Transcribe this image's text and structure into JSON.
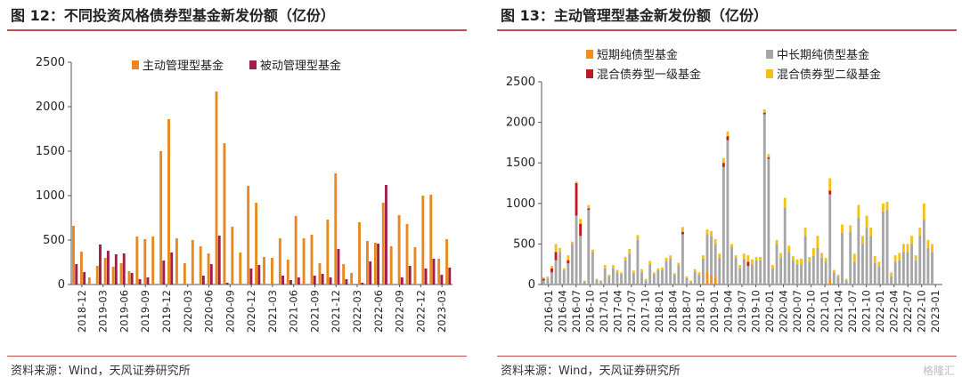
{
  "charts": [
    {
      "title": "图 12：不同投资风格债券型基金新发份额（亿份）",
      "source": "资料来源：Wind，天风证券研究所",
      "chart_data": {
        "type": "bar",
        "stacked": false,
        "ylim": [
          0,
          2500
        ],
        "yticks": [
          0,
          500,
          1000,
          1500,
          2000,
          2500
        ],
        "x_labels": [
          "2018-12",
          "2019-03",
          "2019-06",
          "2019-09",
          "2019-12",
          "2020-03",
          "2020-06",
          "2020-09",
          "2020-12",
          "2021-03",
          "2021-06",
          "2021-09",
          "2021-12",
          "2022-03",
          "2022-06",
          "2022-09",
          "2022-12",
          "2023-03"
        ],
        "legend_position": "top",
        "grid": false,
        "series": [
          {
            "name": "主动管理型基金",
            "color": "#E8891E",
            "values": [
              660,
              370,
              80,
              210,
              300,
              200,
              240,
              150,
              540,
              510,
              540,
              1500,
              1860,
              520,
              240,
              500,
              430,
              350,
              2170,
              1590,
              650,
              360,
              1110,
              920,
              310,
              300,
              520,
              280,
              770,
              520,
              560,
              240,
              730,
              1250,
              230,
              130,
              700,
              490,
              470,
              920,
              430,
              780,
              680,
              420,
              1000,
              1010,
              290,
              510
            ]
          },
          {
            "name": "被动管理型基金",
            "color": "#A11E4B",
            "values": [
              230,
              140,
              0,
              450,
              380,
              340,
              350,
              130,
              60,
              80,
              0,
              270,
              360,
              0,
              0,
              0,
              100,
              230,
              550,
              20,
              0,
              0,
              180,
              220,
              0,
              0,
              100,
              50,
              80,
              0,
              100,
              120,
              80,
              400,
              60,
              0,
              20,
              260,
              460,
              1120,
              0,
              80,
              210,
              0,
              180,
              290,
              110,
              190
            ]
          }
        ]
      }
    },
    {
      "title": "图 13：主动管理型基金新发份额（亿份）",
      "source": "资料来源：Wind，天风证券研究所",
      "watermark": "格隆汇",
      "chart_data": {
        "type": "bar",
        "stacked": true,
        "ylim": [
          0,
          2500
        ],
        "yticks": [
          0,
          500,
          1000,
          1500,
          2000,
          2500
        ],
        "x_labels": [
          "2016-01",
          "2016-04",
          "2016-07",
          "2016-10",
          "2017-01",
          "2017-04",
          "2017-07",
          "2017-10",
          "2018-01",
          "2018-04",
          "2018-07",
          "2018-10",
          "2019-01",
          "2019-04",
          "2019-07",
          "2019-10",
          "2020-01",
          "2020-04",
          "2020-07",
          "2020-10",
          "2021-01",
          "2021-04",
          "2021-07",
          "2021-10",
          "2022-01",
          "2022-04",
          "2022-07",
          "2022-10",
          "2023-01"
        ],
        "legend_position": "top",
        "grid": false,
        "series": [
          {
            "name": "短期纯债型基金",
            "color": "#F0901A",
            "values": [
              0,
              0,
              0,
              0,
              0,
              0,
              0,
              0,
              0,
              0,
              0,
              0,
              0,
              0,
              0,
              0,
              0,
              0,
              0,
              0,
              0,
              0,
              0,
              0,
              0,
              0,
              0,
              0,
              0,
              0,
              0,
              0,
              0,
              0,
              0,
              0,
              0,
              0,
              0,
              20,
              160,
              120,
              100,
              0,
              0,
              0,
              0,
              0,
              0,
              0,
              0,
              0,
              0,
              0,
              0,
              0,
              0,
              0,
              0,
              0,
              0,
              0,
              0,
              0,
              0,
              0,
              0,
              0,
              0,
              0,
              60,
              0,
              0,
              0,
              0,
              0,
              0,
              0,
              0,
              0,
              0,
              0,
              0,
              0,
              0,
              0,
              0,
              0,
              0,
              0,
              0,
              0,
              0,
              0,
              0,
              0,
              0,
              0
            ]
          },
          {
            "name": "中长期纯债型基金",
            "color": "#A6A6A6",
            "values": [
              50,
              80,
              150,
              300,
              400,
              180,
              260,
              500,
              850,
              600,
              40,
              920,
              400,
              60,
              40,
              200,
              100,
              200,
              150,
              130,
              300,
              380,
              140,
              550,
              150,
              50,
              250,
              130,
              170,
              180,
              290,
              320,
              120,
              240,
              620,
              80,
              30,
              160,
              120,
              300,
              460,
              480,
              400,
              330,
              1450,
              1780,
              460,
              330,
              200,
              320,
              230,
              250,
              300,
              300,
              2100,
              1550,
              200,
              500,
              330,
              950,
              400,
              300,
              250,
              250,
              600,
              280,
              350,
              450,
              330,
              280,
              1050,
              150,
              100,
              640,
              50,
              650,
              280,
              830,
              500,
              700,
              600,
              270,
              220,
              900,
              920,
              100,
              280,
              300,
              400,
              400,
              500,
              300,
              600,
              800,
              450,
              400
            ]
          },
          {
            "name": "混合债券型一级基金",
            "color": "#C0181E",
            "values": [
              20,
              0,
              50,
              100,
              0,
              0,
              40,
              0,
              400,
              150,
              0,
              20,
              0,
              0,
              0,
              0,
              0,
              0,
              0,
              0,
              0,
              0,
              0,
              0,
              0,
              0,
              0,
              0,
              0,
              0,
              0,
              0,
              0,
              0,
              30,
              0,
              0,
              0,
              0,
              0,
              0,
              0,
              0,
              0,
              50,
              50,
              0,
              0,
              0,
              0,
              50,
              0,
              0,
              0,
              20,
              20,
              0,
              0,
              0,
              0,
              0,
              0,
              0,
              0,
              0,
              0,
              0,
              0,
              0,
              0,
              50,
              0,
              0,
              0,
              0,
              0,
              0,
              0,
              0,
              0,
              0,
              0,
              0,
              0,
              0,
              0,
              0,
              0,
              0,
              0,
              0,
              0,
              0,
              0,
              0,
              0
            ]
          },
          {
            "name": "混合债券型二级基金",
            "color": "#F5C116",
            "values": [
              20,
              20,
              30,
              100,
              50,
              20,
              60,
              30,
              20,
              60,
              10,
              40,
              30,
              10,
              10,
              40,
              20,
              40,
              30,
              20,
              40,
              60,
              30,
              60,
              40,
              20,
              40,
              20,
              30,
              30,
              40,
              40,
              20,
              30,
              60,
              20,
              20,
              30,
              30,
              40,
              60,
              60,
              60,
              50,
              60,
              60,
              40,
              30,
              40,
              60,
              80,
              60,
              40,
              40,
              40,
              40,
              40,
              50,
              60,
              120,
              80,
              50,
              60,
              70,
              100,
              60,
              100,
              150,
              60,
              50,
              150,
              30,
              20,
              100,
              20,
              80,
              100,
              150,
              100,
              150,
              100,
              80,
              60,
              100,
              100,
              50,
              80,
              90,
              100,
              100,
              100,
              60,
              100,
              200,
              100,
              100
            ]
          }
        ]
      }
    }
  ]
}
